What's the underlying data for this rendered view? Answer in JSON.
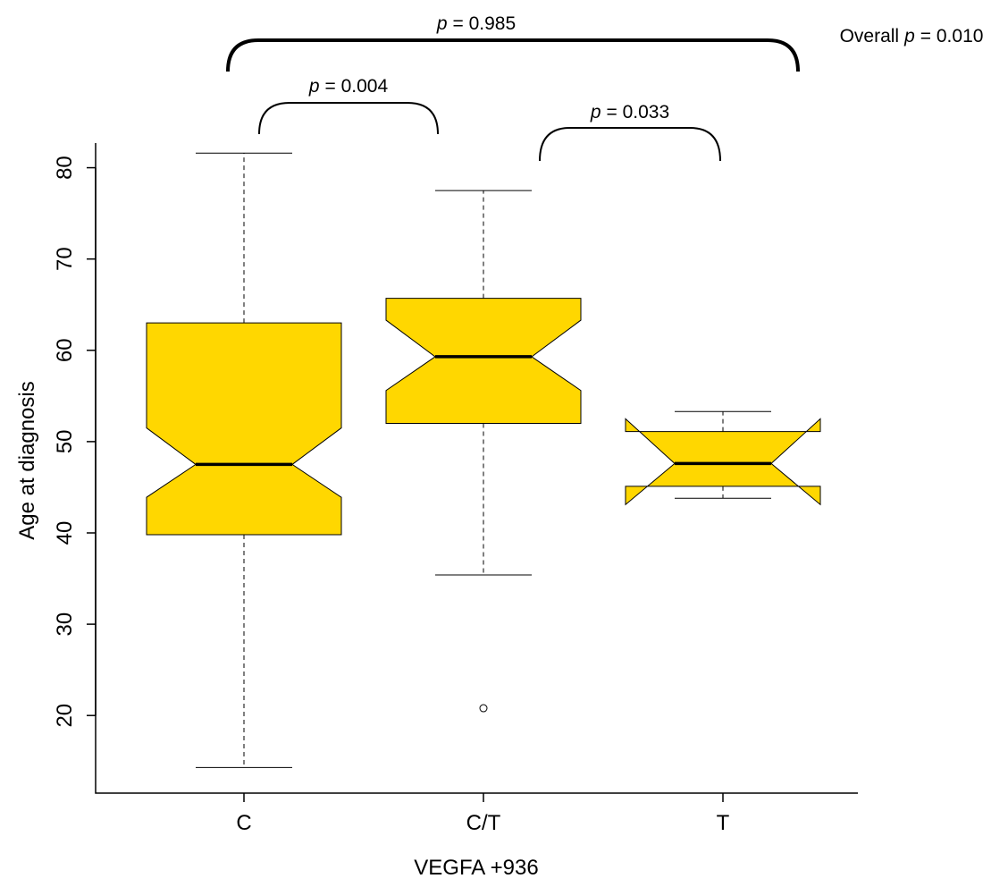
{
  "chart_data": {
    "type": "boxplot",
    "x_label": "VEGFA +936",
    "y_label": "Age at diagnosis",
    "categories": [
      "C",
      "C/T",
      "T"
    ],
    "color": "#ffd700",
    "ylim": [
      11.5,
      82.7
    ],
    "yticks": [
      20,
      30,
      40,
      50,
      60,
      70,
      80
    ],
    "boxes": [
      {
        "whisker_low": 14.3,
        "q1": 39.8,
        "notch_low": 43.9,
        "median": 47.5,
        "notch_high": 51.5,
        "q3": 63.0,
        "whisker_high": 81.6,
        "outliers": []
      },
      {
        "whisker_low": 35.4,
        "q1": 52.0,
        "notch_low": 55.6,
        "median": 59.3,
        "notch_high": 63.3,
        "q3": 65.7,
        "whisker_high": 77.5,
        "outliers": [
          20.8
        ]
      },
      {
        "whisker_low": 43.8,
        "q1": 45.1,
        "notch_low": 43.1,
        "median": 47.6,
        "notch_high": 52.5,
        "q3": 51.1,
        "whisker_high": 53.3,
        "outliers": []
      }
    ],
    "comparisons": [
      {
        "symbol": "p",
        "text": "= 0.985"
      },
      {
        "symbol": "p",
        "text": "= 0.004"
      },
      {
        "symbol": "p",
        "text": "= 0.033"
      }
    ],
    "overall": {
      "prefix": "Overall",
      "symbol": "p",
      "text": "= 0.010"
    }
  }
}
